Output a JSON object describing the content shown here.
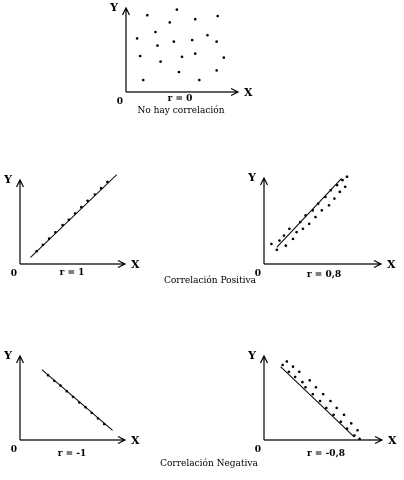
{
  "chart_data": [
    {
      "type": "scatter",
      "xlabel": "X",
      "ylabel": "Y",
      "origin_label": "0",
      "r_label": "r = 0",
      "caption": "No hay correlación",
      "points": [
        [
          0.15,
          0.91
        ],
        [
          0.44,
          0.98
        ],
        [
          0.84,
          0.9
        ],
        [
          0.05,
          0.62
        ],
        [
          0.23,
          0.7
        ],
        [
          0.37,
          0.82
        ],
        [
          0.62,
          0.86
        ],
        [
          0.25,
          0.53
        ],
        [
          0.41,
          0.58
        ],
        [
          0.59,
          0.6
        ],
        [
          0.74,
          0.66
        ],
        [
          0.83,
          0.58
        ],
        [
          0.08,
          0.4
        ],
        [
          0.28,
          0.33
        ],
        [
          0.49,
          0.39
        ],
        [
          0.62,
          0.43
        ],
        [
          0.9,
          0.38
        ],
        [
          0.11,
          0.1
        ],
        [
          0.46,
          0.2
        ],
        [
          0.66,
          0.1
        ],
        [
          0.83,
          0.22
        ]
      ]
    },
    {
      "type": "scatter",
      "xlabel": "X",
      "ylabel": "Y",
      "origin_label": "0",
      "r_label": "r = 1",
      "caption": "Correlación Positiva",
      "trend": [
        [
          0.1,
          0.05
        ],
        [
          0.93,
          0.97
        ]
      ],
      "points": [
        [
          0.16,
          0.12
        ],
        [
          0.22,
          0.19
        ],
        [
          0.28,
          0.26
        ],
        [
          0.34,
          0.33
        ],
        [
          0.41,
          0.41
        ],
        [
          0.47,
          0.47
        ],
        [
          0.53,
          0.54
        ],
        [
          0.59,
          0.61
        ],
        [
          0.65,
          0.68
        ],
        [
          0.72,
          0.75
        ],
        [
          0.78,
          0.82
        ],
        [
          0.84,
          0.89
        ]
      ]
    },
    {
      "type": "scatter",
      "xlabel": "X",
      "ylabel": "Y",
      "origin_label": "0",
      "r_label": "r = 0,8",
      "caption": "",
      "trend": [
        [
          0.12,
          0.08
        ],
        [
          0.84,
          0.9
        ]
      ],
      "points": [
        [
          0.06,
          0.12
        ],
        [
          0.12,
          0.05
        ],
        [
          0.15,
          0.16
        ],
        [
          0.2,
          0.22
        ],
        [
          0.22,
          0.1
        ],
        [
          0.26,
          0.3
        ],
        [
          0.3,
          0.18
        ],
        [
          0.34,
          0.26
        ],
        [
          0.38,
          0.38
        ],
        [
          0.41,
          0.3
        ],
        [
          0.44,
          0.46
        ],
        [
          0.48,
          0.36
        ],
        [
          0.52,
          0.52
        ],
        [
          0.55,
          0.44
        ],
        [
          0.58,
          0.6
        ],
        [
          0.62,
          0.52
        ],
        [
          0.66,
          0.68
        ],
        [
          0.7,
          0.58
        ],
        [
          0.72,
          0.76
        ],
        [
          0.76,
          0.66
        ],
        [
          0.79,
          0.82
        ],
        [
          0.82,
          0.74
        ],
        [
          0.85,
          0.88
        ],
        [
          0.88,
          0.8
        ],
        [
          0.9,
          0.92
        ]
      ]
    },
    {
      "type": "scatter",
      "xlabel": "X",
      "ylabel": "Y",
      "origin_label": "0",
      "r_label": "r = -1",
      "caption": "Correlación Negativa",
      "trend": [
        [
          0.21,
          0.88
        ],
        [
          0.89,
          0.12
        ]
      ],
      "points": [
        [
          0.27,
          0.81
        ],
        [
          0.33,
          0.74
        ],
        [
          0.39,
          0.68
        ],
        [
          0.45,
          0.61
        ],
        [
          0.51,
          0.54
        ],
        [
          0.57,
          0.47
        ],
        [
          0.63,
          0.41
        ],
        [
          0.69,
          0.34
        ],
        [
          0.75,
          0.27
        ],
        [
          0.81,
          0.2
        ]
      ]
    },
    {
      "type": "scatter",
      "xlabel": "X",
      "ylabel": "Y",
      "origin_label": "0",
      "r_label": "r = -0,8",
      "caption": "",
      "trend": [
        [
          0.14,
          0.9
        ],
        [
          0.85,
          0.08
        ]
      ],
      "points": [
        [
          0.16,
          0.92
        ],
        [
          0.2,
          0.96
        ],
        [
          0.22,
          0.84
        ],
        [
          0.26,
          0.9
        ],
        [
          0.28,
          0.78
        ],
        [
          0.32,
          0.84
        ],
        [
          0.35,
          0.72
        ],
        [
          0.38,
          0.66
        ],
        [
          0.42,
          0.74
        ],
        [
          0.45,
          0.58
        ],
        [
          0.48,
          0.66
        ],
        [
          0.52,
          0.5
        ],
        [
          0.55,
          0.58
        ],
        [
          0.58,
          0.42
        ],
        [
          0.62,
          0.5
        ],
        [
          0.65,
          0.34
        ],
        [
          0.68,
          0.42
        ],
        [
          0.72,
          0.26
        ],
        [
          0.75,
          0.34
        ],
        [
          0.78,
          0.18
        ],
        [
          0.82,
          0.24
        ],
        [
          0.85,
          0.1
        ],
        [
          0.88,
          0.16
        ],
        [
          0.9,
          0.06
        ]
      ]
    }
  ]
}
